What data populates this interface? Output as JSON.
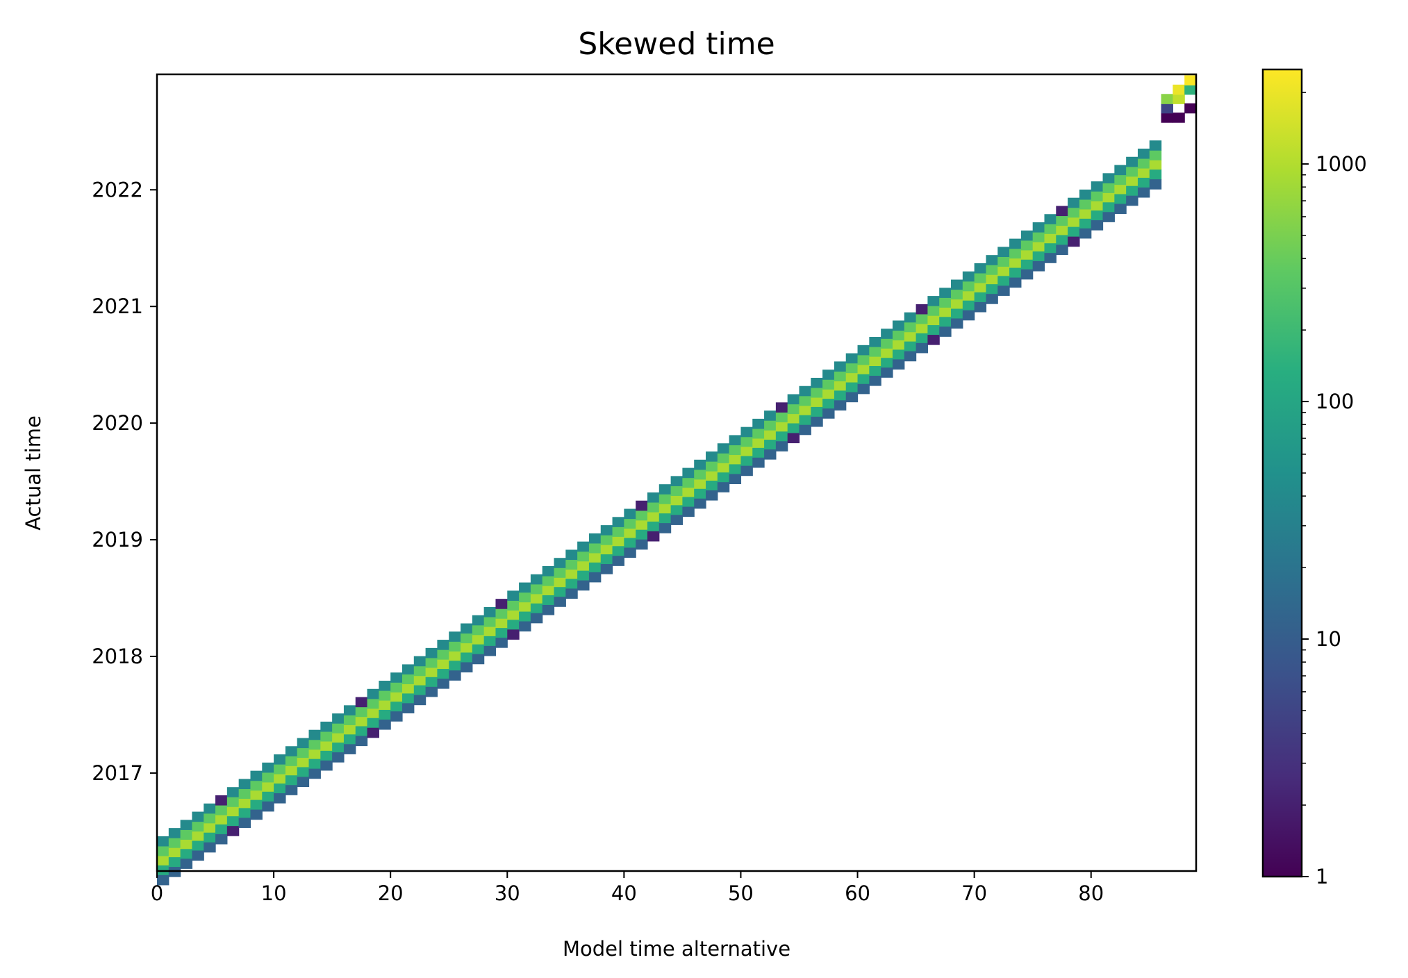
{
  "chart_data": {
    "type": "heatmap",
    "title": "Skewed time",
    "xlabel": "Model time alternative",
    "ylabel": "Actual time",
    "xlim": [
      0,
      89
    ],
    "ylim": [
      2016.16,
      2022.99
    ],
    "xticks": [
      0,
      10,
      20,
      30,
      40,
      50,
      60,
      70,
      80
    ],
    "yticks": [
      2017,
      2018,
      2019,
      2020,
      2021,
      2022
    ],
    "colorbar": {
      "scale": "log",
      "range": [
        1,
        2500
      ],
      "ticks": [
        1,
        10,
        100,
        1000
      ],
      "tick_labels": [
        "1",
        "10",
        "100",
        "1000"
      ],
      "colormap": "viridis"
    },
    "bins": {
      "x_bin_width": 1,
      "y_bin_width_years": 0.0833,
      "cells_per_column": 6,
      "core_value": 900,
      "upper_neighbor_value": 350,
      "lower_neighbor_value": 120,
      "upper_edge_value": 40,
      "lower_edge_value": 12,
      "sparse_edge_value": 2,
      "last_columns": [
        {
          "x": 86,
          "values": [
            {
              "y": 2022.62,
              "v": 1
            },
            {
              "y": 2022.7,
              "v": 5
            },
            {
              "y": 2022.78,
              "v": 600
            }
          ]
        },
        {
          "x": 87,
          "values": [
            {
              "y": 2022.62,
              "v": 1
            },
            {
              "y": 2022.78,
              "v": 1200
            },
            {
              "y": 2022.86,
              "v": 2000
            }
          ]
        },
        {
          "x": 88,
          "values": [
            {
              "y": 2022.7,
              "v": 1
            },
            {
              "y": 2022.86,
              "v": 150
            },
            {
              "y": 2022.94,
              "v": 2400
            }
          ]
        }
      ]
    },
    "grid": false,
    "legend": "colorbar-right"
  }
}
